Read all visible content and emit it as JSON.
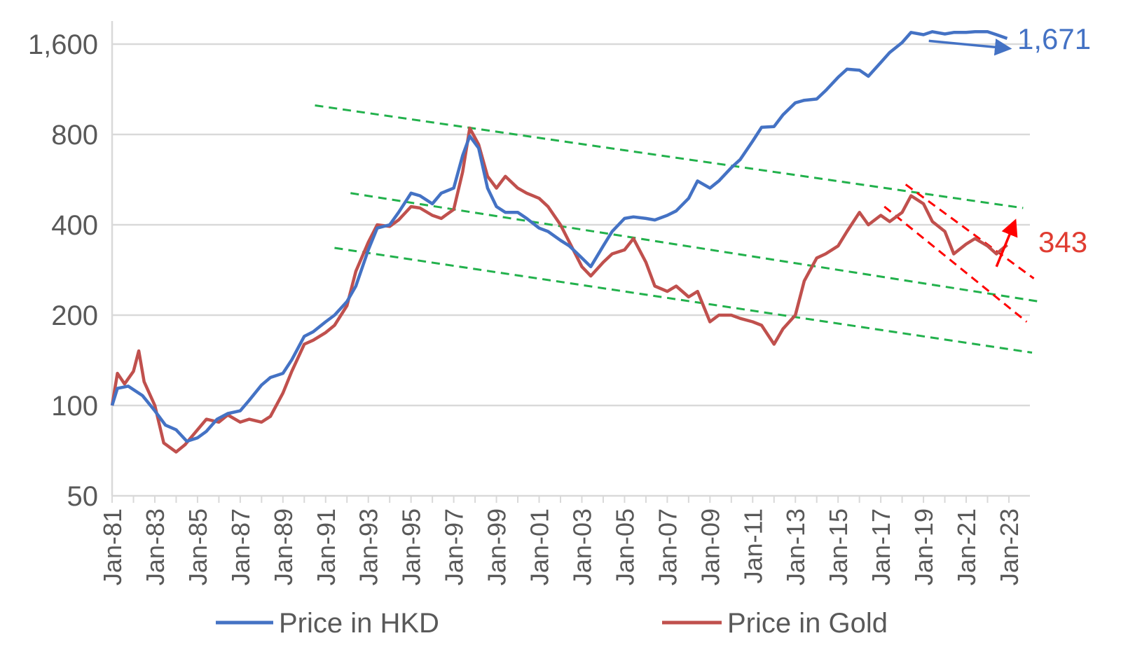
{
  "chart_data": {
    "type": "line",
    "title": "",
    "xlabel": "",
    "ylabel": "",
    "y_scale": "log",
    "ylim": [
      50,
      2100
    ],
    "xlim": [
      "1981-01",
      "2023-06"
    ],
    "grid": "horizontal",
    "legend_position": "bottom",
    "y_ticks": [
      {
        "value": 50,
        "label": "50"
      },
      {
        "value": 100,
        "label": "100"
      },
      {
        "value": 200,
        "label": "200"
      },
      {
        "value": 400,
        "label": "400"
      },
      {
        "value": 800,
        "label": "800"
      },
      {
        "value": 1600,
        "label": "1,600"
      }
    ],
    "x_ticks": [
      "Jan-81",
      "Jan-83",
      "Jan-85",
      "Jan-87",
      "Jan-89",
      "Jan-91",
      "Jan-93",
      "Jan-95",
      "Jan-97",
      "Jan-99",
      "Jan-01",
      "Jan-03",
      "Jan-05",
      "Jan-07",
      "Jan-09",
      "Jan-11",
      "Jan-13",
      "Jan-15",
      "Jan-17",
      "Jan-19",
      "Jan-21",
      "Jan-23"
    ],
    "series": [
      {
        "name": "Price in HKD",
        "color": "#4472C4",
        "points": [
          [
            "1981-01",
            100
          ],
          [
            "1981-04",
            114
          ],
          [
            "1981-10",
            116
          ],
          [
            "1982-06",
            108
          ],
          [
            "1983-01",
            96
          ],
          [
            "1983-07",
            86
          ],
          [
            "1984-01",
            83
          ],
          [
            "1984-07",
            76
          ],
          [
            "1985-01",
            78
          ],
          [
            "1985-06",
            82
          ],
          [
            "1985-12",
            90
          ],
          [
            "1986-06",
            94
          ],
          [
            "1987-01",
            96
          ],
          [
            "1987-06",
            104
          ],
          [
            "1988-01",
            117
          ],
          [
            "1988-06",
            124
          ],
          [
            "1989-01",
            128
          ],
          [
            "1989-06",
            142
          ],
          [
            "1990-01",
            170
          ],
          [
            "1990-06",
            176
          ],
          [
            "1991-01",
            190
          ],
          [
            "1991-06",
            200
          ],
          [
            "1992-01",
            222
          ],
          [
            "1992-06",
            250
          ],
          [
            "1993-01",
            330
          ],
          [
            "1993-06",
            390
          ],
          [
            "1994-01",
            400
          ],
          [
            "1994-06",
            440
          ],
          [
            "1995-01",
            510
          ],
          [
            "1995-06",
            500
          ],
          [
            "1996-01",
            470
          ],
          [
            "1996-06",
            510
          ],
          [
            "1997-01",
            530
          ],
          [
            "1997-06",
            680
          ],
          [
            "1997-10",
            790
          ],
          [
            "1998-03",
            720
          ],
          [
            "1998-08",
            530
          ],
          [
            "1999-01",
            460
          ],
          [
            "1999-06",
            440
          ],
          [
            "2000-01",
            440
          ],
          [
            "2000-06",
            420
          ],
          [
            "2001-01",
            390
          ],
          [
            "2001-06",
            380
          ],
          [
            "2002-01",
            355
          ],
          [
            "2002-06",
            340
          ],
          [
            "2003-01",
            310
          ],
          [
            "2003-06",
            290
          ],
          [
            "2004-01",
            340
          ],
          [
            "2004-06",
            380
          ],
          [
            "2005-01",
            420
          ],
          [
            "2005-06",
            425
          ],
          [
            "2006-01",
            420
          ],
          [
            "2006-06",
            415
          ],
          [
            "2007-01",
            430
          ],
          [
            "2007-06",
            445
          ],
          [
            "2008-01",
            490
          ],
          [
            "2008-06",
            560
          ],
          [
            "2009-01",
            530
          ],
          [
            "2009-06",
            560
          ],
          [
            "2010-01",
            620
          ],
          [
            "2010-06",
            660
          ],
          [
            "2011-01",
            760
          ],
          [
            "2011-06",
            845
          ],
          [
            "2012-01",
            850
          ],
          [
            "2012-06",
            930
          ],
          [
            "2013-01",
            1020
          ],
          [
            "2013-06",
            1040
          ],
          [
            "2014-01",
            1050
          ],
          [
            "2014-06",
            1120
          ],
          [
            "2015-01",
            1240
          ],
          [
            "2015-06",
            1320
          ],
          [
            "2016-01",
            1310
          ],
          [
            "2016-06",
            1250
          ],
          [
            "2017-01",
            1390
          ],
          [
            "2017-06",
            1500
          ],
          [
            "2018-01",
            1620
          ],
          [
            "2018-06",
            1750
          ],
          [
            "2019-01",
            1720
          ],
          [
            "2019-06",
            1760
          ],
          [
            "2020-01",
            1730
          ],
          [
            "2020-06",
            1750
          ],
          [
            "2021-01",
            1750
          ],
          [
            "2021-06",
            1760
          ],
          [
            "2022-01",
            1760
          ],
          [
            "2022-06",
            1720
          ],
          [
            "2022-12",
            1671
          ]
        ]
      },
      {
        "name": "Price in Gold",
        "color": "#C0504D",
        "points": [
          [
            "1981-01",
            100
          ],
          [
            "1981-04",
            128
          ],
          [
            "1981-08",
            118
          ],
          [
            "1982-01",
            130
          ],
          [
            "1982-04",
            152
          ],
          [
            "1982-07",
            120
          ],
          [
            "1983-01",
            100
          ],
          [
            "1983-06",
            75
          ],
          [
            "1984-01",
            70
          ],
          [
            "1984-06",
            74
          ],
          [
            "1985-01",
            83
          ],
          [
            "1985-06",
            90
          ],
          [
            "1986-01",
            88
          ],
          [
            "1986-06",
            93
          ],
          [
            "1987-01",
            88
          ],
          [
            "1987-06",
            90
          ],
          [
            "1988-01",
            88
          ],
          [
            "1988-06",
            92
          ],
          [
            "1989-01",
            110
          ],
          [
            "1989-06",
            130
          ],
          [
            "1990-01",
            160
          ],
          [
            "1990-06",
            165
          ],
          [
            "1991-01",
            175
          ],
          [
            "1991-06",
            185
          ],
          [
            "1992-01",
            215
          ],
          [
            "1992-06",
            280
          ],
          [
            "1993-01",
            350
          ],
          [
            "1993-06",
            400
          ],
          [
            "1994-01",
            395
          ],
          [
            "1994-06",
            415
          ],
          [
            "1995-01",
            460
          ],
          [
            "1995-06",
            455
          ],
          [
            "1996-01",
            430
          ],
          [
            "1996-06",
            420
          ],
          [
            "1997-01",
            450
          ],
          [
            "1997-06",
            600
          ],
          [
            "1997-10",
            840
          ],
          [
            "1998-03",
            740
          ],
          [
            "1998-08",
            580
          ],
          [
            "1999-01",
            530
          ],
          [
            "1999-06",
            580
          ],
          [
            "2000-01",
            530
          ],
          [
            "2000-06",
            510
          ],
          [
            "2001-01",
            490
          ],
          [
            "2001-06",
            460
          ],
          [
            "2002-01",
            400
          ],
          [
            "2002-06",
            350
          ],
          [
            "2003-01",
            290
          ],
          [
            "2003-06",
            270
          ],
          [
            "2004-01",
            300
          ],
          [
            "2004-06",
            320
          ],
          [
            "2005-01",
            330
          ],
          [
            "2005-06",
            360
          ],
          [
            "2006-01",
            300
          ],
          [
            "2006-06",
            250
          ],
          [
            "2007-01",
            240
          ],
          [
            "2007-06",
            250
          ],
          [
            "2008-01",
            230
          ],
          [
            "2008-06",
            240
          ],
          [
            "2009-01",
            190
          ],
          [
            "2009-06",
            200
          ],
          [
            "2010-01",
            200
          ],
          [
            "2010-06",
            195
          ],
          [
            "2011-01",
            190
          ],
          [
            "2011-06",
            185
          ],
          [
            "2012-01",
            160
          ],
          [
            "2012-06",
            180
          ],
          [
            "2013-01",
            200
          ],
          [
            "2013-06",
            260
          ],
          [
            "2014-01",
            310
          ],
          [
            "2014-06",
            320
          ],
          [
            "2015-01",
            340
          ],
          [
            "2015-06",
            380
          ],
          [
            "2016-01",
            440
          ],
          [
            "2016-06",
            400
          ],
          [
            "2017-01",
            430
          ],
          [
            "2017-06",
            410
          ],
          [
            "2018-01",
            440
          ],
          [
            "2018-06",
            500
          ],
          [
            "2019-01",
            470
          ],
          [
            "2019-06",
            410
          ],
          [
            "2020-01",
            380
          ],
          [
            "2020-06",
            320
          ],
          [
            "2021-01",
            345
          ],
          [
            "2021-06",
            360
          ],
          [
            "2022-01",
            340
          ],
          [
            "2022-06",
            320
          ],
          [
            "2022-12",
            343
          ]
        ]
      }
    ],
    "annotations": [
      {
        "text": "1,671",
        "color": "#4472C4",
        "series": "Price in HKD"
      },
      {
        "text": "343",
        "color": "#E03C31",
        "series": "Price in Gold"
      }
    ],
    "trend_lines": [
      {
        "style": "dashed",
        "color": "#22B14C",
        "from": [
          "1990-07",
          1000
        ],
        "to": [
          "2023-09",
          455
        ]
      },
      {
        "style": "dashed",
        "color": "#22B14C",
        "from": [
          "1992-03",
          510
        ],
        "to": [
          "2024-06",
          222
        ]
      },
      {
        "style": "dashed",
        "color": "#22B14C",
        "from": [
          "1991-06",
          335
        ],
        "to": [
          "2024-02",
          150
        ]
      },
      {
        "style": "dashed",
        "color": "#FF0000",
        "from": [
          "2018-03",
          545
        ],
        "to": [
          "2024-03",
          265
        ]
      },
      {
        "style": "dashed",
        "color": "#FF0000",
        "from": [
          "2017-03",
          460
        ],
        "to": [
          "2023-11",
          190
        ]
      }
    ],
    "arrows": [
      {
        "color": "#4472C4",
        "from": [
          "2019-04",
          1640
        ],
        "to": [
          "2022-12",
          1550
        ]
      },
      {
        "color": "#FF0000",
        "from": [
          "2022-06",
          290
        ],
        "to": [
          "2023-04",
          405
        ]
      }
    ]
  }
}
